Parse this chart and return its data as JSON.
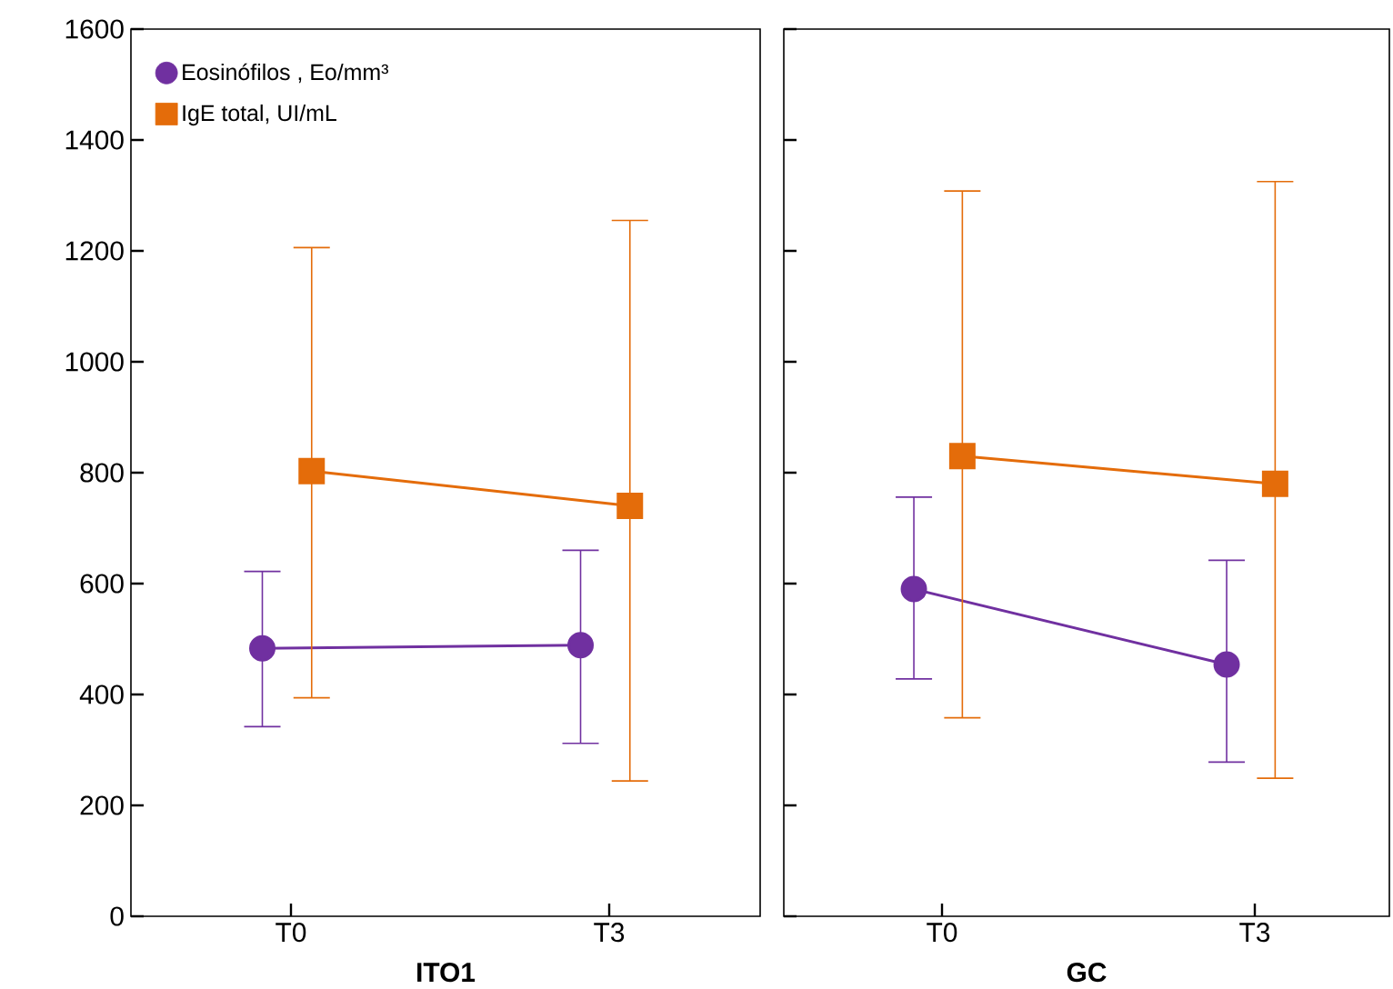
{
  "chart_data": [
    {
      "type": "line",
      "categories": [
        "T0",
        "T3"
      ],
      "xlabel": "ITO1",
      "ylim": [
        0,
        1600
      ],
      "yticks": [
        0,
        200,
        400,
        600,
        800,
        1000,
        1200,
        1400,
        1600
      ],
      "legend": "top left",
      "series": [
        {
          "name": "Eosinófilos , Eo/mm³",
          "color": "#7030a0",
          "marker": "circle",
          "values": [
            483,
            489
          ],
          "errors": [
            [
              342,
              622
            ],
            [
              312,
              660
            ]
          ]
        },
        {
          "name": "IgE total, UI/mL",
          "color": "#e46c0a",
          "marker": "square",
          "values": [
            803,
            740
          ],
          "errors": [
            [
              394,
              1206
            ],
            [
              244,
              1255
            ]
          ]
        }
      ]
    },
    {
      "type": "line",
      "categories": [
        "T0",
        "T3"
      ],
      "xlabel": "GC",
      "ylim": [
        0,
        1600
      ],
      "yticks": [
        0,
        200,
        400,
        600,
        800,
        1000,
        1200,
        1400,
        1600
      ],
      "tick_labels": "x",
      "series": [
        {
          "color": "#7030a0",
          "marker": "circle",
          "values": [
            590,
            454
          ],
          "errors": [
            [
              428,
              756
            ],
            [
              278,
              642
            ]
          ]
        },
        {
          "color": "#e46c0a",
          "marker": "square",
          "values": [
            830,
            780
          ],
          "errors": [
            [
              358,
              1308
            ],
            [
              249,
              1325
            ]
          ]
        }
      ]
    }
  ]
}
